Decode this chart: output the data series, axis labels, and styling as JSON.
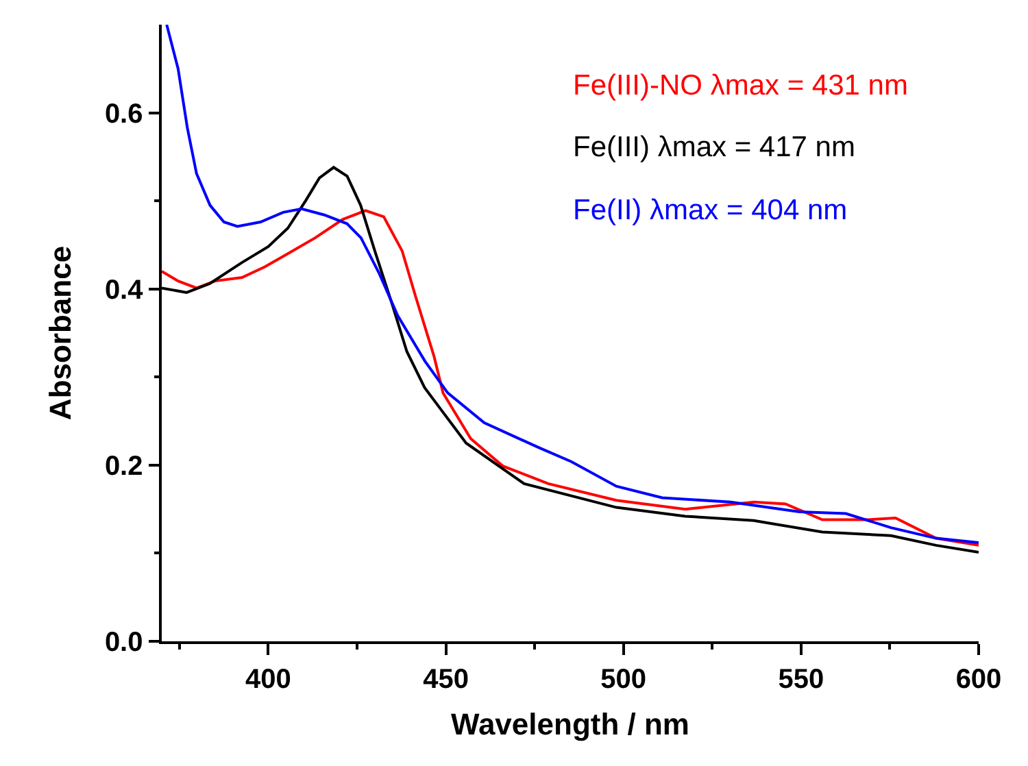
{
  "chart_data": {
    "type": "line",
    "xlabel": "Wavelength / nm",
    "ylabel": "Absorbance",
    "xlim": [
      370,
      600
    ],
    "ylim": [
      0,
      0.7
    ],
    "xticks": [
      {
        "value": 375,
        "label": null
      },
      400,
      {
        "value": 425,
        "label": null
      },
      450,
      {
        "value": 475,
        "label": null
      },
      500,
      {
        "value": 525,
        "label": null
      },
      550,
      {
        "value": 575,
        "label": null
      },
      600
    ],
    "yticks": [
      {
        "value": 0,
        "label": "0.0"
      },
      {
        "value": 0.1,
        "label": null
      },
      0.2,
      {
        "value": 0.3,
        "label": null
      },
      0.4,
      {
        "value": 0.5,
        "label": null
      },
      0.6
    ],
    "legend": "top right",
    "line_style": "solid",
    "marker": "none",
    "series": [
      {
        "name": "Fe(III)-NO λmax = 431 nm",
        "color": "#ff0000",
        "x": [
          370,
          374.6,
          379.8,
          385,
          392.6,
          399,
          405.5,
          413.2,
          421,
          427.4,
          432.5,
          437.7,
          441.5,
          446.7,
          449.2,
          457,
          466,
          478.8,
          498,
          517.4,
          536.7,
          545.6,
          556,
          568.8,
          576.6,
          588,
          600
        ],
        "values": [
          0.42,
          0.409,
          0.401,
          0.409,
          0.413,
          0.425,
          0.44,
          0.458,
          0.479,
          0.489,
          0.482,
          0.443,
          0.391,
          0.323,
          0.282,
          0.23,
          0.199,
          0.179,
          0.16,
          0.15,
          0.158,
          0.156,
          0.138,
          0.138,
          0.14,
          0.117,
          0.109
        ]
      },
      {
        "name": "Fe(III) λmax = 417 nm",
        "color": "#000000",
        "x": [
          370,
          377,
          383.5,
          392.6,
          400,
          405.5,
          410.5,
          414.4,
          418.4,
          422.2,
          426,
          430,
          435,
          439,
          444,
          449,
          455.7,
          472,
          498,
          517.4,
          536.7,
          556,
          575.3,
          588,
          600
        ],
        "values": [
          0.401,
          0.396,
          0.406,
          0.43,
          0.448,
          0.469,
          0.5,
          0.526,
          0.538,
          0.528,
          0.495,
          0.443,
          0.381,
          0.329,
          0.288,
          0.261,
          0.225,
          0.179,
          0.152,
          0.142,
          0.137,
          0.124,
          0.12,
          0.109,
          0.101
        ]
      },
      {
        "name": "Fe(II) λmax = 404 nm",
        "color": "#0000ff",
        "x": [
          371.4,
          374.6,
          377.2,
          379.8,
          383.6,
          387.5,
          391.3,
          397.8,
          404.2,
          409.4,
          415.8,
          422.2,
          426.1,
          431.3,
          436.4,
          444.1,
          450.5,
          460.8,
          476.1,
          485.3,
          498,
          510.9,
          530.2,
          549.5,
          562.6,
          575.3,
          588,
          600
        ],
        "values": [
          0.7,
          0.65,
          0.583,
          0.531,
          0.495,
          0.476,
          0.471,
          0.476,
          0.487,
          0.491,
          0.484,
          0.474,
          0.458,
          0.417,
          0.37,
          0.318,
          0.282,
          0.248,
          0.22,
          0.204,
          0.176,
          0.163,
          0.158,
          0.147,
          0.145,
          0.129,
          0.117,
          0.112
        ]
      }
    ]
  }
}
